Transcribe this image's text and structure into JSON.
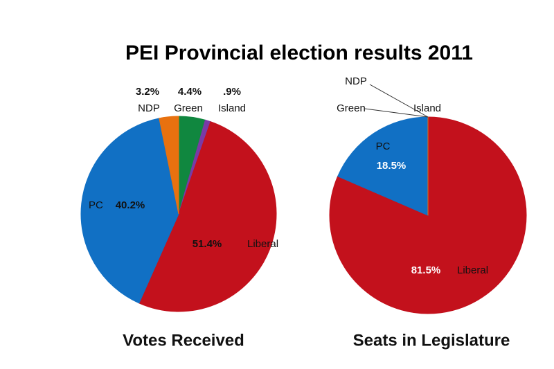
{
  "title": "PEI Provincial election results 2011",
  "chart_data": [
    {
      "type": "pie",
      "title": "Votes Received",
      "categories": [
        "Green",
        "Island",
        "Liberal",
        "PC",
        "NDP"
      ],
      "values": [
        4.4,
        0.9,
        51.4,
        40.2,
        3.2
      ],
      "value_labels": [
        "4.4%",
        ".9%",
        "51.4%",
        "40.2%",
        "3.2%"
      ],
      "colors": [
        "#10873f",
        "#7a3aa6",
        "#c3111c",
        "#1170c4",
        "#e8710f"
      ]
    },
    {
      "type": "pie",
      "title": "Seats in Legislature",
      "categories": [
        "Green",
        "Island",
        "Liberal",
        "PC",
        "NDP"
      ],
      "values": [
        0,
        0,
        81.5,
        18.5,
        0
      ],
      "value_labels": [
        null,
        null,
        "81.5%",
        "18.5%",
        null
      ],
      "colors": [
        "#10873f",
        "#7a3aa6",
        "#c3111c",
        "#1170c4",
        "#e8710f"
      ]
    }
  ]
}
